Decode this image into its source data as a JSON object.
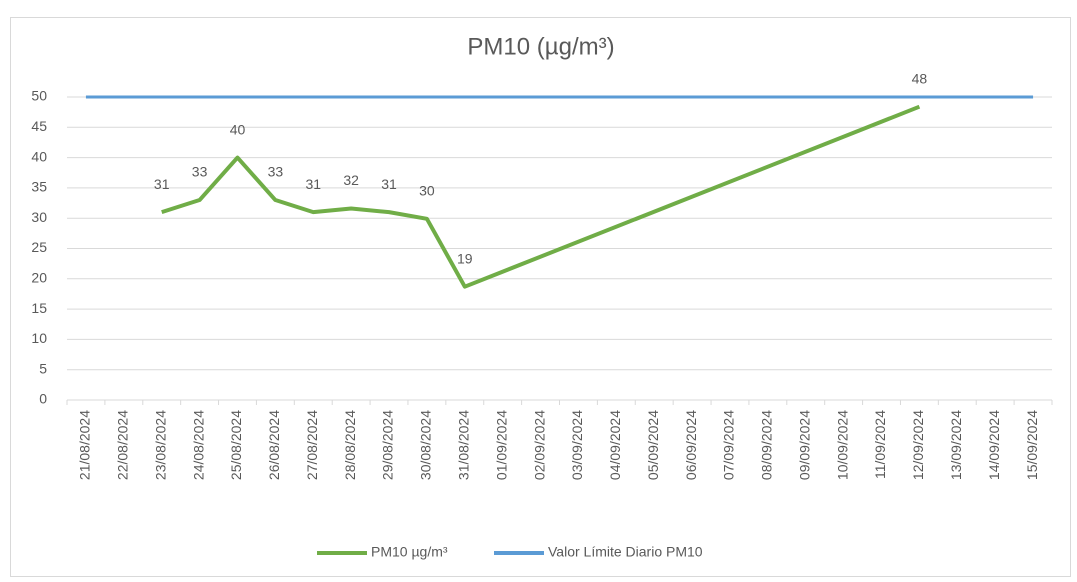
{
  "chart_data": {
    "type": "line",
    "title": "PM10 (µg/m³)",
    "categories": [
      "21/08/2024",
      "22/08/2024",
      "23/08/2024",
      "24/08/2024",
      "25/08/2024",
      "26/08/2024",
      "27/08/2024",
      "28/08/2024",
      "29/08/2024",
      "30/08/2024",
      "31/08/2024",
      "01/09/2024",
      "02/09/2024",
      "03/09/2024",
      "04/09/2024",
      "05/09/2024",
      "06/09/2024",
      "07/09/2024",
      "08/09/2024",
      "09/09/2024",
      "10/09/2024",
      "11/09/2024",
      "12/09/2024",
      "13/09/2024",
      "14/09/2024",
      "15/09/2024"
    ],
    "series": [
      {
        "name": "PM10 µg/m³",
        "color": "#70ad47",
        "values": [
          null,
          null,
          31,
          33,
          40,
          33,
          31,
          31.6,
          31,
          29.9,
          18.7,
          null,
          null,
          null,
          null,
          null,
          null,
          null,
          null,
          null,
          null,
          null,
          48.4,
          null,
          null,
          null
        ],
        "value_labels": [
          null,
          null,
          "31",
          "33",
          "40",
          "33",
          "31",
          "32",
          "31",
          "30",
          "19",
          null,
          null,
          null,
          null,
          null,
          null,
          null,
          null,
          null,
          null,
          null,
          "48",
          null,
          null,
          null
        ]
      },
      {
        "name": "Valor Límite Diario PM10",
        "color": "#5b9bd5",
        "values": [
          50,
          50,
          50,
          50,
          50,
          50,
          50,
          50,
          50,
          50,
          50,
          50,
          50,
          50,
          50,
          50,
          50,
          50,
          50,
          50,
          50,
          50,
          50,
          50,
          50,
          50
        ]
      }
    ],
    "ylim": [
      0,
      50
    ],
    "yticks": [
      0,
      5,
      10,
      15,
      20,
      25,
      30,
      35,
      40,
      45,
      50
    ],
    "grid": true,
    "span_gaps": true,
    "legend": "bottom"
  }
}
